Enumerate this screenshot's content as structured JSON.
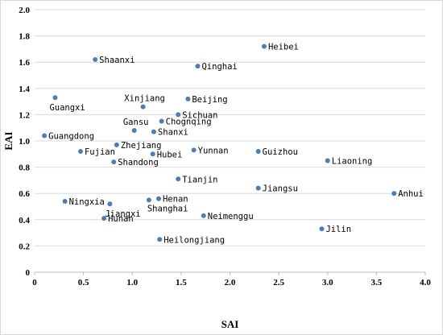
{
  "chart_data": {
    "type": "scatter",
    "title": "",
    "xlabel": "SAI",
    "ylabel": "EAI",
    "xlim": [
      0,
      4.0
    ],
    "ylim": [
      0,
      2.0
    ],
    "x_ticks": [
      "0",
      "0.5",
      "1.0",
      "1.5",
      "2.0",
      "2.5",
      "3.0",
      "3.5",
      "4.0"
    ],
    "y_ticks": [
      "0",
      "0.2",
      "0.4",
      "0.6",
      "0.8",
      "1.0",
      "1.2",
      "1.4",
      "1.6",
      "1.8",
      "2.0"
    ],
    "x_tick_values": [
      0,
      0.5,
      1.0,
      1.5,
      2.0,
      2.5,
      3.0,
      3.5,
      4.0
    ],
    "y_tick_values": [
      0,
      0.2,
      0.4,
      0.6,
      0.8,
      1.0,
      1.2,
      1.4,
      1.6,
      1.8,
      2.0
    ],
    "grid": "horizontal",
    "marker_color": "#4a7ebb",
    "points": [
      {
        "label": "Heibei",
        "x": 2.35,
        "y": 1.72
      },
      {
        "label": "Shaanxi",
        "x": 0.62,
        "y": 1.62
      },
      {
        "label": "Qinghai",
        "x": 1.67,
        "y": 1.57
      },
      {
        "label": "Guangxi",
        "x": 0.21,
        "y": 1.33
      },
      {
        "label": "Beijing",
        "x": 1.57,
        "y": 1.32
      },
      {
        "label": "Xinjiang",
        "x": 1.11,
        "y": 1.26
      },
      {
        "label": "Sichuan",
        "x": 1.47,
        "y": 1.2
      },
      {
        "label": "Chognqing",
        "x": 1.3,
        "y": 1.15
      },
      {
        "label": "Gansu",
        "x": 1.02,
        "y": 1.08
      },
      {
        "label": "Shanxi",
        "x": 1.22,
        "y": 1.07
      },
      {
        "label": "Guangdong",
        "x": 0.1,
        "y": 1.04
      },
      {
        "label": "Zhejiang",
        "x": 0.84,
        "y": 0.97
      },
      {
        "label": "Fujian",
        "x": 0.47,
        "y": 0.92
      },
      {
        "label": "Hubei",
        "x": 1.21,
        "y": 0.9
      },
      {
        "label": "Yunnan",
        "x": 1.63,
        "y": 0.93
      },
      {
        "label": "Guizhou",
        "x": 2.29,
        "y": 0.92
      },
      {
        "label": "Liaoning",
        "x": 3.0,
        "y": 0.85
      },
      {
        "label": "Shandong",
        "x": 0.81,
        "y": 0.84
      },
      {
        "label": "Tianjin",
        "x": 1.47,
        "y": 0.71
      },
      {
        "label": "Jiangsu",
        "x": 2.29,
        "y": 0.64
      },
      {
        "label": "Anhui",
        "x": 3.68,
        "y": 0.6
      },
      {
        "label": "Henan",
        "x": 1.27,
        "y": 0.56
      },
      {
        "label": "Shanghai",
        "x": 1.17,
        "y": 0.55
      },
      {
        "label": "Ningxia",
        "x": 0.31,
        "y": 0.54
      },
      {
        "label": "Jiangxi",
        "x": 0.77,
        "y": 0.52
      },
      {
        "label": "Neimenggu",
        "x": 1.73,
        "y": 0.43
      },
      {
        "label": "Hunan",
        "x": 0.71,
        "y": 0.41
      },
      {
        "label": "Jilin",
        "x": 2.94,
        "y": 0.33
      },
      {
        "label": "Heilongjiang",
        "x": 1.28,
        "y": 0.25
      }
    ]
  }
}
